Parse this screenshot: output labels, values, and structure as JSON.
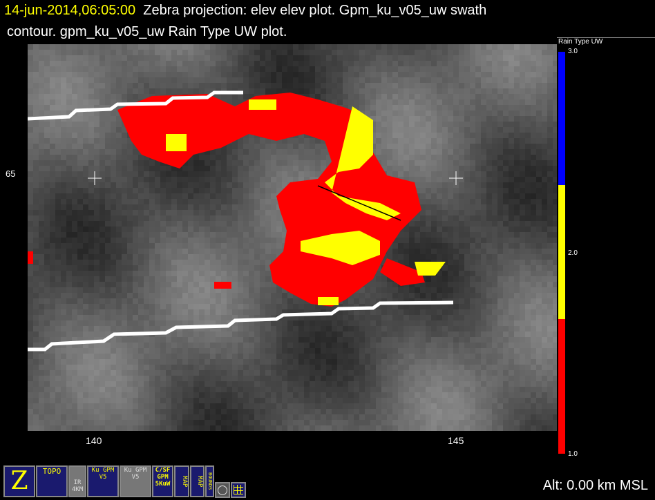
{
  "title": {
    "timestamp": "14-jun-2014,06:05:00",
    "line1_rest": "Zebra projection: elev elev  plot.  Gpm_ku_v05_uw swath",
    "line2": "contour.  gpm_ku_v05_uw Rain Type UW  plot."
  },
  "axes": {
    "y_label": "65",
    "x_labels": [
      "140",
      "145"
    ]
  },
  "colorbar": {
    "title": "Rain Type UW",
    "labels": [
      "3.0",
      "2.0",
      "1.0"
    ],
    "colors": {
      "high": "#0000ff",
      "mid": "#ffff00",
      "low": "#ff0000"
    }
  },
  "icons": [
    {
      "name": "zebra-logo-icon",
      "text": "Z"
    },
    {
      "name": "topo-icon",
      "text": "TOPO"
    },
    {
      "name": "ir-4km-icon",
      "text": "IR 4KM"
    },
    {
      "name": "ku-gpm-v5-icon",
      "text": "Ku GPM V5"
    },
    {
      "name": "ku-gpm-v5-gray-icon",
      "text": "Ku GPM V5"
    },
    {
      "name": "csf-gpm-icon",
      "text": "C/SF GPM 5KuW"
    },
    {
      "name": "map-icon-1",
      "text": "MAP"
    },
    {
      "name": "map-icon-2",
      "text": "MAP"
    },
    {
      "name": "bounds-icon",
      "text": "BOUNDS"
    },
    {
      "name": "circle-target-icon",
      "text": ""
    },
    {
      "name": "grid-icon",
      "text": ""
    }
  ],
  "status": {
    "altitude": "Alt: 0.00 km MSL"
  }
}
